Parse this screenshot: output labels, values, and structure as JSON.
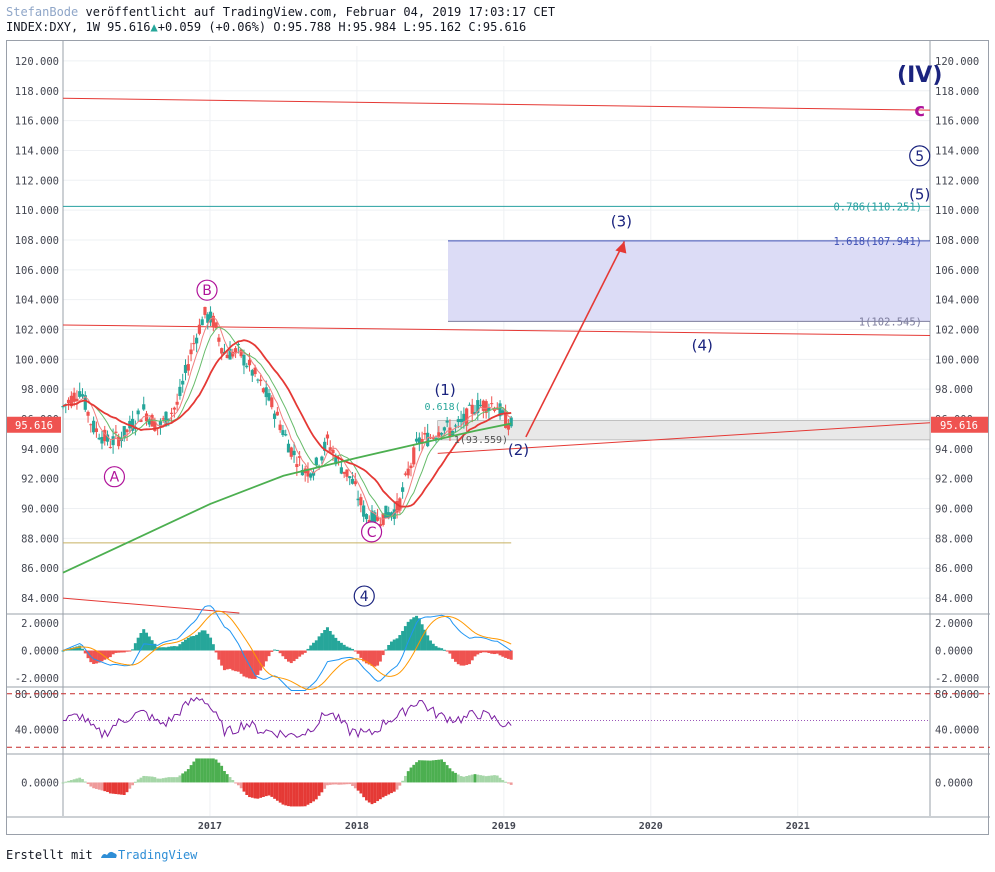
{
  "header": {
    "author": "StefanBode",
    "published_text": "veröffentlicht auf TradingView.com, Februar 04, 2019 17:03:17 CET",
    "symbol": "INDEX:DXY, 1W",
    "last": "95.616",
    "change": "+0.059 (+0.06%)",
    "ohlc": "O:95.788 H:95.984 L:95.162 C:95.616"
  },
  "footer": {
    "created_with": "Erstellt mit",
    "brand": "TradingView"
  },
  "colors": {
    "candle_up": "#26a69a",
    "candle_down": "#ef5350",
    "ma_long": "#4caf50",
    "ma_short": "#e53935",
    "trend_line": "#e53935",
    "fib_line": "#3f51b5",
    "fib_zone": "#dcdcf6",
    "gray_zone": "#e8e8e8",
    "price_tag": "#ef5350",
    "wave_blue": "#1a237e",
    "wave_magenta": "#b0139a"
  },
  "chart_data": {
    "type": "candlestick",
    "price_axis": {
      "min": 83,
      "max": 121,
      "ticks": [
        "120.000",
        "118.000",
        "116.000",
        "114.000",
        "112.000",
        "110.000",
        "108.000",
        "106.000",
        "104.000",
        "102.000",
        "100.000",
        "98.000",
        "96.000",
        "94.000",
        "92.000",
        "90.000",
        "88.000",
        "86.000",
        "84.000"
      ],
      "tick_values": [
        120,
        118,
        116,
        114,
        112,
        110,
        108,
        106,
        104,
        102,
        100,
        98,
        96,
        94,
        92,
        90,
        88,
        86,
        84
      ],
      "current_price": "95.616"
    },
    "time_axis": {
      "labels": [
        "2017",
        "2018",
        "2019",
        "2020",
        "2021"
      ],
      "label_years": [
        2017,
        2018,
        2019,
        2020,
        2021
      ],
      "start": 2016.0,
      "end": 2021.9
    },
    "price_path": [
      [
        2016.0,
        96.8
      ],
      [
        2016.12,
        98.0
      ],
      [
        2016.2,
        95.5
      ],
      [
        2016.32,
        94.4
      ],
      [
        2016.42,
        95.0
      ],
      [
        2016.55,
        96.6
      ],
      [
        2016.65,
        95.4
      ],
      [
        2016.78,
        97.0
      ],
      [
        2016.88,
        100.8
      ],
      [
        2016.96,
        103.0
      ],
      [
        2017.02,
        102.6
      ],
      [
        2017.1,
        100.4
      ],
      [
        2017.2,
        100.5
      ],
      [
        2017.3,
        99.0
      ],
      [
        2017.42,
        97.0
      ],
      [
        2017.55,
        94.0
      ],
      [
        2017.65,
        92.5
      ],
      [
        2017.72,
        92.8
      ],
      [
        2017.8,
        94.5
      ],
      [
        2017.88,
        93.0
      ],
      [
        2017.96,
        92.0
      ],
      [
        2018.06,
        89.5
      ],
      [
        2018.12,
        89.2
      ],
      [
        2018.22,
        89.7
      ],
      [
        2018.28,
        90.0
      ],
      [
        2018.35,
        92.5
      ],
      [
        2018.42,
        94.5
      ],
      [
        2018.5,
        94.8
      ],
      [
        2018.58,
        95.5
      ],
      [
        2018.65,
        95.2
      ],
      [
        2018.72,
        95.8
      ],
      [
        2018.8,
        96.8
      ],
      [
        2018.88,
        97.0
      ],
      [
        2018.95,
        97.0
      ],
      [
        2019.0,
        96.0
      ],
      [
        2019.05,
        95.6
      ]
    ],
    "fib_levels": [
      {
        "label": "0.786(110.251)",
        "price": 110.251
      },
      {
        "label": "1.618(107.941)",
        "price": 107.941
      },
      {
        "label": "1(102.545)",
        "price": 102.545
      }
    ],
    "small_labels": {
      "fib_0618": "0.618(",
      "fib_low": "1(93.559)"
    },
    "wave_labels": [
      {
        "text": "(IV)",
        "t": 2021.83,
        "p": 118.6
      },
      {
        "text": "c",
        "t": 2021.83,
        "p": 116.3
      },
      {
        "text": "5",
        "t": 2021.83,
        "p": 113.3
      },
      {
        "text": "(5)",
        "t": 2021.83,
        "p": 110.7
      },
      {
        "text": "(3)",
        "t": 2019.8,
        "p": 108.9
      },
      {
        "text": "(4)",
        "t": 2020.35,
        "p": 100.6
      },
      {
        "text": "(1)",
        "t": 2018.6,
        "p": 97.6
      },
      {
        "text": "(2)",
        "t": 2019.1,
        "p": 93.6
      },
      {
        "text": "4",
        "t": 2018.05,
        "p": 83.8
      },
      {
        "text": "B",
        "t": 2016.98,
        "p": 104.3
      },
      {
        "text": "A",
        "t": 2016.35,
        "p": 91.8
      },
      {
        "text": "C",
        "t": 2018.1,
        "p": 88.1
      }
    ],
    "macd": {
      "ticks": [
        "2.0000",
        "0.0000",
        "-2.0000"
      ],
      "tick_values": [
        2,
        0,
        -2
      ]
    },
    "rsi": {
      "ticks": [
        "80.0000",
        "40.0000"
      ],
      "tick_values": [
        80,
        40
      ],
      "overbought": 80,
      "oversold": 20
    },
    "oscillator": {
      "ticks": [
        "0.0000"
      ],
      "tick_values": [
        0
      ]
    }
  }
}
